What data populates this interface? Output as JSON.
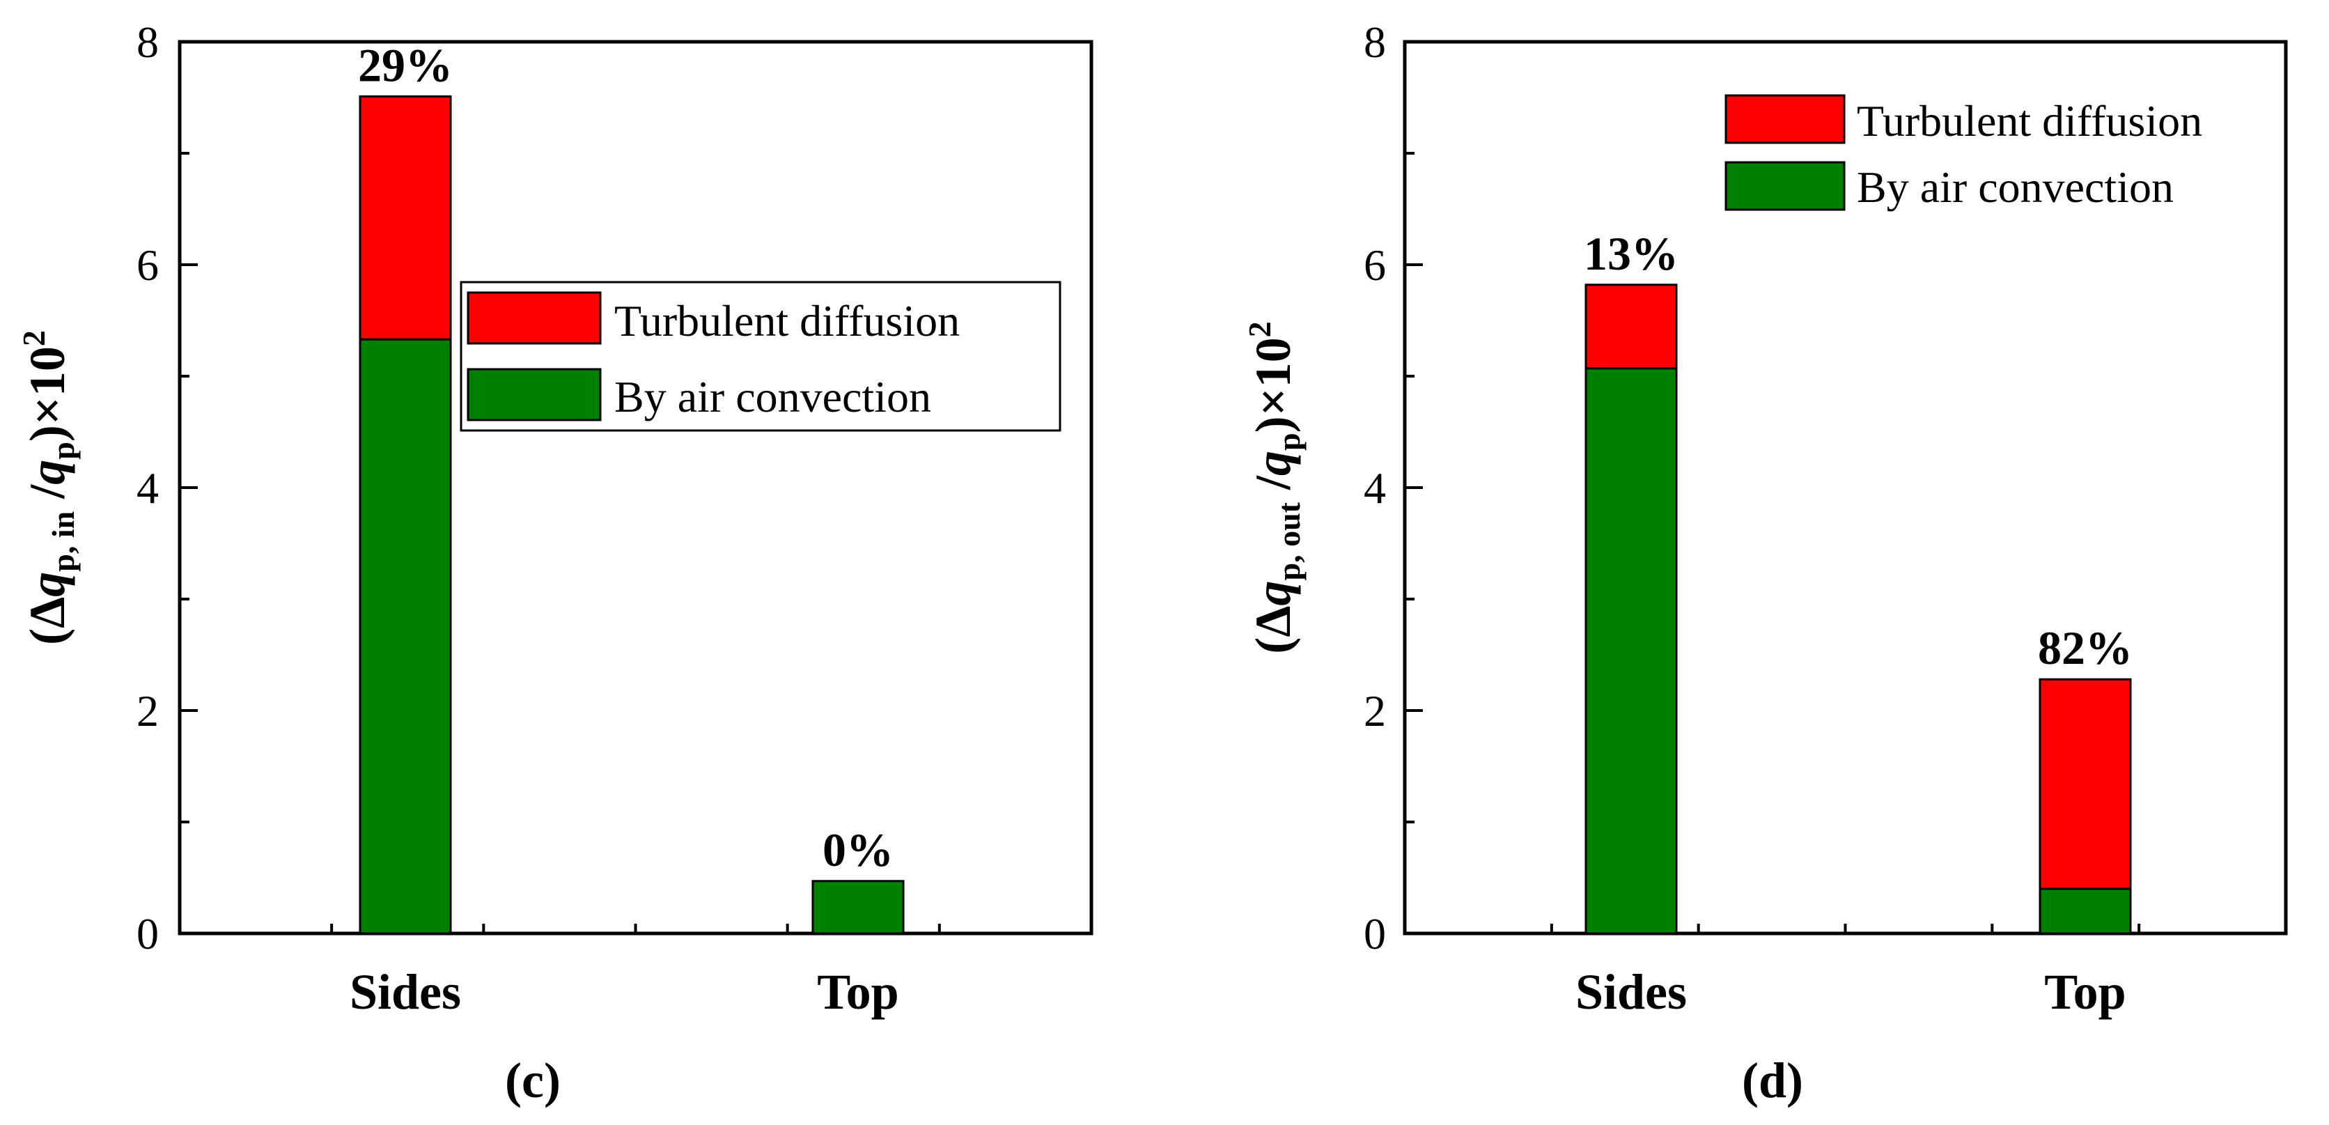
{
  "colors": {
    "turbulent": "#ff0000",
    "convection": "#008000",
    "axis": "#000000"
  },
  "chart_data": [
    {
      "type": "bar",
      "stacked": true,
      "panel_label": "(c)",
      "ylabel": {
        "open": "(Δ",
        "var": "q",
        "sub": "p, in",
        "slash": " /",
        "var2": "q",
        "sub2": "p",
        "close": ")×10",
        "sup": "2"
      },
      "ylim": [
        0,
        8
      ],
      "yticks": [
        "0",
        "2",
        "4",
        "6",
        "8"
      ],
      "categories": [
        "Sides",
        "Top"
      ],
      "series": [
        {
          "name": "By air convection",
          "color_key": "convection",
          "values": [
            5.33,
            0.47
          ]
        },
        {
          "name": "Turbulent diffusion",
          "color_key": "turbulent",
          "values": [
            2.18,
            0.0
          ]
        }
      ],
      "annotations": [
        "29%",
        "0%"
      ],
      "legend": {
        "position": "center-right",
        "entries": [
          "Turbulent diffusion",
          "By air convection"
        ]
      }
    },
    {
      "type": "bar",
      "stacked": true,
      "panel_label": "(d)",
      "ylabel": {
        "open": "(Δ",
        "var": "q",
        "sub": "p, out",
        "slash": " /",
        "var2": "q",
        "sub2": "p",
        "close": ")×10",
        "sup": "2"
      },
      "ylim": [
        0,
        8
      ],
      "yticks": [
        "0",
        "2",
        "4",
        "6",
        "8"
      ],
      "categories": [
        "Sides",
        "Top"
      ],
      "series": [
        {
          "name": "By air convection",
          "color_key": "convection",
          "values": [
            5.07,
            0.4
          ]
        },
        {
          "name": "Turbulent diffusion",
          "color_key": "turbulent",
          "values": [
            0.75,
            1.88
          ]
        }
      ],
      "annotations": [
        "13%",
        "82%"
      ],
      "legend": {
        "position": "top-right",
        "entries": [
          "Turbulent diffusion",
          "By air convection"
        ]
      }
    }
  ]
}
